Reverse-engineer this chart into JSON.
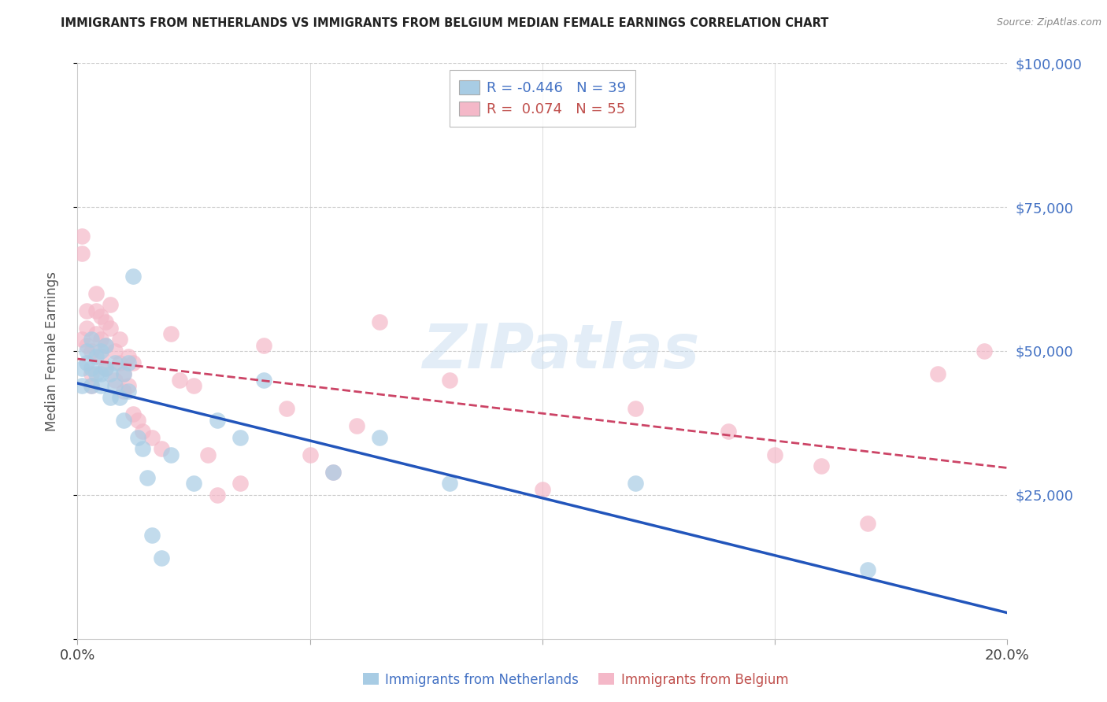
{
  "title": "IMMIGRANTS FROM NETHERLANDS VS IMMIGRANTS FROM BELGIUM MEDIAN FEMALE EARNINGS CORRELATION CHART",
  "source": "Source: ZipAtlas.com",
  "ylabel": "Median Female Earnings",
  "watermark": "ZIPatlas",
  "legend_blue_r": "-0.446",
  "legend_blue_n": "39",
  "legend_pink_r": "0.074",
  "legend_pink_n": "55",
  "legend_blue_label": "Immigrants from Netherlands",
  "legend_pink_label": "Immigrants from Belgium",
  "blue_color": "#a8cce4",
  "pink_color": "#f4b8c8",
  "trend_blue_color": "#2255bb",
  "trend_pink_color": "#cc4466",
  "blue_x": [
    0.001,
    0.001,
    0.002,
    0.002,
    0.003,
    0.003,
    0.003,
    0.004,
    0.004,
    0.005,
    0.005,
    0.005,
    0.006,
    0.006,
    0.007,
    0.007,
    0.008,
    0.008,
    0.009,
    0.01,
    0.01,
    0.011,
    0.011,
    0.012,
    0.013,
    0.014,
    0.015,
    0.016,
    0.018,
    0.02,
    0.025,
    0.03,
    0.035,
    0.04,
    0.055,
    0.065,
    0.08,
    0.12,
    0.17
  ],
  "blue_y": [
    47000,
    44000,
    50000,
    48000,
    52000,
    47000,
    44000,
    46000,
    49000,
    50000,
    44000,
    46000,
    47000,
    51000,
    46000,
    42000,
    44000,
    48000,
    42000,
    46000,
    38000,
    43000,
    48000,
    63000,
    35000,
    33000,
    28000,
    18000,
    14000,
    32000,
    27000,
    38000,
    35000,
    45000,
    29000,
    35000,
    27000,
    27000,
    12000
  ],
  "pink_x": [
    0.001,
    0.001,
    0.001,
    0.002,
    0.002,
    0.002,
    0.003,
    0.003,
    0.003,
    0.004,
    0.004,
    0.004,
    0.005,
    0.005,
    0.005,
    0.006,
    0.006,
    0.006,
    0.007,
    0.007,
    0.008,
    0.008,
    0.009,
    0.009,
    0.01,
    0.01,
    0.011,
    0.011,
    0.012,
    0.012,
    0.013,
    0.014,
    0.016,
    0.018,
    0.02,
    0.022,
    0.025,
    0.028,
    0.03,
    0.035,
    0.04,
    0.045,
    0.05,
    0.055,
    0.06,
    0.065,
    0.08,
    0.1,
    0.12,
    0.14,
    0.15,
    0.16,
    0.17,
    0.185,
    0.195
  ],
  "pink_y": [
    70000,
    52000,
    67000,
    57000,
    54000,
    51000,
    50000,
    46000,
    44000,
    60000,
    57000,
    53000,
    56000,
    52000,
    49000,
    55000,
    51000,
    47000,
    58000,
    54000,
    50000,
    45000,
    52000,
    48000,
    46000,
    43000,
    49000,
    44000,
    48000,
    39000,
    38000,
    36000,
    35000,
    33000,
    53000,
    45000,
    44000,
    32000,
    25000,
    27000,
    51000,
    40000,
    32000,
    29000,
    37000,
    55000,
    45000,
    26000,
    40000,
    36000,
    32000,
    30000,
    20000,
    46000,
    50000
  ],
  "xlim": [
    0.0,
    0.2
  ],
  "ylim": [
    0,
    100000
  ],
  "xtick_positions": [
    0.0,
    0.05,
    0.1,
    0.15,
    0.2
  ],
  "xtick_labels": [
    "0.0%",
    "",
    "",
    "",
    "20.0%"
  ],
  "ytick_positions": [
    0,
    25000,
    50000,
    75000,
    100000
  ],
  "ytick_labels": [
    "",
    "$25,000",
    "$50,000",
    "$75,000",
    "$100,000"
  ],
  "figsize": [
    14.06,
    8.92
  ],
  "dpi": 100
}
